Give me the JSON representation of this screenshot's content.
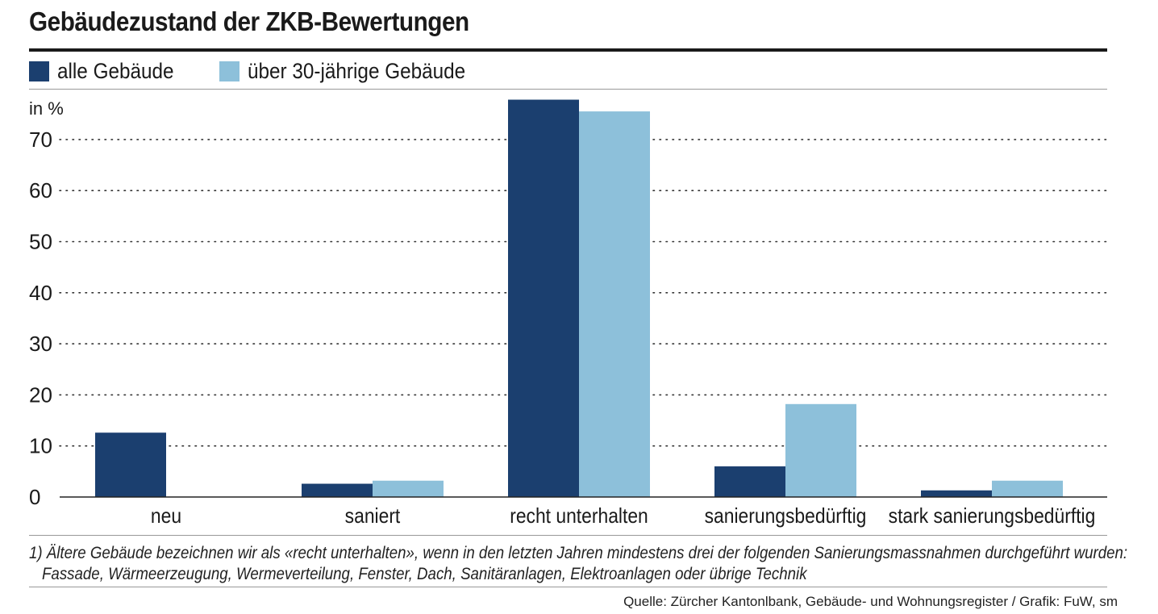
{
  "title": "Gebäudezustand der ZKB-Bewertungen",
  "legend": [
    {
      "label": "alle Gebäude",
      "color": "#1b3f6f"
    },
    {
      "label": "über 30-jährige Gebäude",
      "color": "#8dc0da"
    }
  ],
  "footnote": {
    "line1": "1) Ältere Gebäude bezeichnen wir als «recht unterhalten», wenn in den letzten Jahren mindestens drei der folgenden Sanierungsmassnahmen durchgeführt wurden:",
    "line2": "Fassade, Wärmeerzeugung, Wermeverteilung, Fenster, Dach, Sanitäranlagen, Elektroanlagen oder übrige Technik"
  },
  "source": "Quelle: Zürcher Kantonlbank, Gebäude- und Wohnungsregister / Grafik: FuW, sm",
  "chart_data": {
    "type": "bar",
    "title": "Gebäudezustand der ZKB-Bewertungen",
    "ylabel": "in %",
    "xlabel": "",
    "categories": [
      "neu",
      "saniert",
      "recht unterhalten",
      "sanierungsbedürftig",
      "stark sanierungsbedürftig"
    ],
    "series": [
      {
        "name": "alle Gebäude",
        "color": "#1b3f6f",
        "values": [
          12.6,
          2.6,
          77.8,
          6.0,
          1.3
        ]
      },
      {
        "name": "über 30-jährige Gebäude",
        "color": "#8dc0da",
        "values": [
          0,
          3.2,
          75.5,
          18.2,
          3.2
        ]
      }
    ],
    "yticks": [
      0,
      10,
      20,
      30,
      40,
      50,
      60,
      70
    ],
    "ylim": [
      0,
      78
    ],
    "grid": "dotted horizontal",
    "legend_position": "top-left"
  }
}
